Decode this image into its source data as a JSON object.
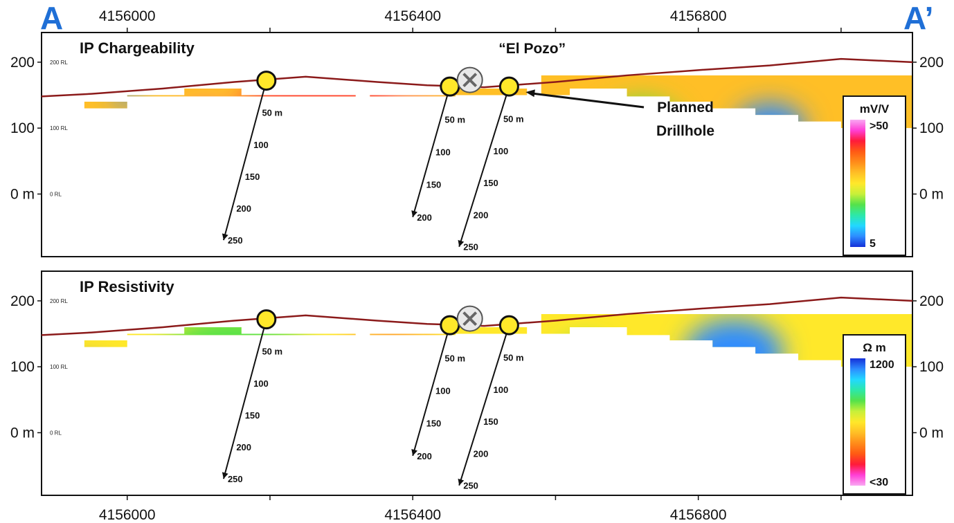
{
  "section": {
    "start_label": "A",
    "end_label": "A’"
  },
  "x_axis": {
    "ticks": [
      4156000,
      4156400,
      4156800
    ],
    "range": [
      4155880,
      4157100
    ]
  },
  "y_axis": {
    "tick_labels": [
      "200",
      "100",
      "0 m"
    ],
    "range": [
      -95,
      245
    ]
  },
  "rl_labels": [
    "200 RL",
    "100 RL",
    "0 RL"
  ],
  "annotations": {
    "el_pozo": "“El Pozo”",
    "planned_drillhole": [
      "Planned",
      "Drillhole"
    ]
  },
  "panels": [
    {
      "id": "chargeability",
      "title": "IP Chargeability",
      "legend": {
        "unit": "mV/V",
        "top_label": ">50",
        "bottom_label": "5",
        "colors": [
          "#f9a8f2",
          "#ff3fd6",
          "#ff1a3a",
          "#ff5a14",
          "#ff8c1a",
          "#ffbf26",
          "#ffe82a",
          "#c8f03a",
          "#55e24a",
          "#2de8a8",
          "#22d8ff",
          "#2d8cff",
          "#1530d8"
        ]
      },
      "blobs": [
        {
          "x": 4156270,
          "y": 115,
          "color": "#ff4630",
          "size": 90
        },
        {
          "x": 4156110,
          "y": 95,
          "color": "#ff3fd6",
          "size": 35
        },
        {
          "x": 4156400,
          "y": 105,
          "color": "#ff3fd6",
          "size": 35
        },
        {
          "x": 4155890,
          "y": 105,
          "color": "#ff3fd6",
          "size": 20
        },
        {
          "x": 4156720,
          "y": 100,
          "color": "#55e24a",
          "size": 45
        },
        {
          "x": 4156900,
          "y": 100,
          "color": "#2d8cff",
          "size": 40
        },
        {
          "x": 4156000,
          "y": 150,
          "color": "#2d8cff",
          "size": 15
        }
      ]
    },
    {
      "id": "resistivity",
      "title": "IP  Resistivity",
      "legend": {
        "unit": "Ω m",
        "top_label": "1200",
        "bottom_label": "<30",
        "colors": [
          "#1530d8",
          "#2d8cff",
          "#22d8ff",
          "#2de8a8",
          "#55e24a",
          "#c8f03a",
          "#ffe82a",
          "#ffbf26",
          "#ff8c1a",
          "#ff5a14",
          "#ff1a3a",
          "#ff3fd6",
          "#f9a8f2"
        ]
      },
      "blobs": [
        {
          "x": 4156150,
          "y": 95,
          "color": "#55e24a",
          "size": 90
        },
        {
          "x": 4155940,
          "y": 75,
          "color": "#1530d8",
          "size": 30
        },
        {
          "x": 4156370,
          "y": 70,
          "color": "#ff1a3a",
          "size": 75
        },
        {
          "x": 4156410,
          "y": 25,
          "color": "#f9a8f2",
          "size": 30
        },
        {
          "x": 4156850,
          "y": 120,
          "color": "#2d8cff",
          "size": 55
        },
        {
          "x": 4156640,
          "y": 110,
          "color": "#55e24a",
          "size": 30
        }
      ]
    }
  ],
  "drillholes": [
    {
      "id": "DH1",
      "collar_x": 4156195,
      "collar_y": 172,
      "end_x": 4156135,
      "end_y": -70,
      "depth_labels": [
        "50 m",
        "100",
        "150",
        "200",
        "250"
      ]
    },
    {
      "id": "DH2",
      "collar_x": 4156452,
      "collar_y": 163,
      "end_x": 4156400,
      "end_y": -35,
      "depth_labels": [
        "50 m",
        "100",
        "150",
        "200"
      ]
    },
    {
      "id": "DH3",
      "collar_x": 4156535,
      "collar_y": 163,
      "end_x": 4156465,
      "end_y": -80,
      "depth_labels": [
        "50 m",
        "100",
        "150",
        "200",
        "250"
      ]
    }
  ],
  "mine_symbol": {
    "x": 4156480,
    "y": 173
  },
  "topography": {
    "x": [
      4155880,
      4155950,
      4156050,
      4156150,
      4156250,
      4156350,
      4156420,
      4156500,
      4156600,
      4156700,
      4156800,
      4156900,
      4157000,
      4157100
    ],
    "y": [
      148,
      152,
      160,
      170,
      178,
      170,
      165,
      162,
      170,
      180,
      188,
      195,
      205,
      200
    ]
  },
  "model_outline": {
    "x": [
      4155880,
      4155880,
      4155940,
      4155940,
      4156000,
      4156000,
      4156080,
      4156080,
      4156160,
      4156160,
      4156320,
      4156320,
      4156340,
      4156340,
      4156460,
      4156460,
      4156560,
      4156560,
      4156620,
      4156620,
      4156700,
      4156700,
      4156760,
      4156760,
      4156820,
      4156820,
      4156880,
      4156880,
      4156940,
      4156940,
      4157000,
      4157000,
      4157100,
      4157100,
      4156580,
      4156580,
      4156160,
      4156160,
      4156000,
      4156000,
      4155880
    ],
    "y": [
      50,
      130,
      130,
      140,
      140,
      150,
      150,
      160,
      160,
      148,
      148,
      150,
      150,
      148,
      148,
      160,
      160,
      150,
      150,
      160,
      160,
      148,
      148,
      140,
      140,
      130,
      130,
      120,
      120,
      110,
      110,
      100,
      100,
      180,
      180,
      150,
      150,
      148,
      148,
      130,
      130
    ]
  }
}
